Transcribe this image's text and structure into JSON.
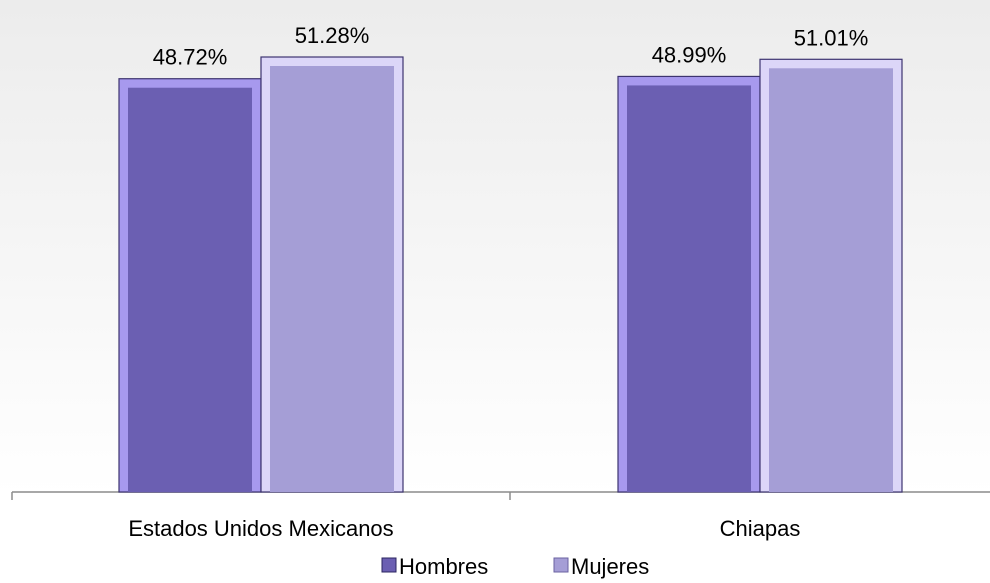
{
  "chart_data": {
    "type": "bar",
    "categories": [
      "Estados Unidos Mexicanos",
      "Chiapas"
    ],
    "series": [
      {
        "name": "Hombres",
        "values": [
          48.72,
          48.99
        ],
        "labels": [
          "48.72%",
          "48.99%"
        ],
        "color": "#6b5fb2",
        "edge": "#a799ee"
      },
      {
        "name": "Mujeres",
        "values": [
          51.28,
          51.01
        ],
        "labels": [
          "51.28%",
          "51.01%"
        ],
        "color": "#a59ed6",
        "edge": "#dcd6f8"
      }
    ],
    "ylim": [
      0,
      58
    ],
    "grid": false,
    "legend": "bottom"
  }
}
